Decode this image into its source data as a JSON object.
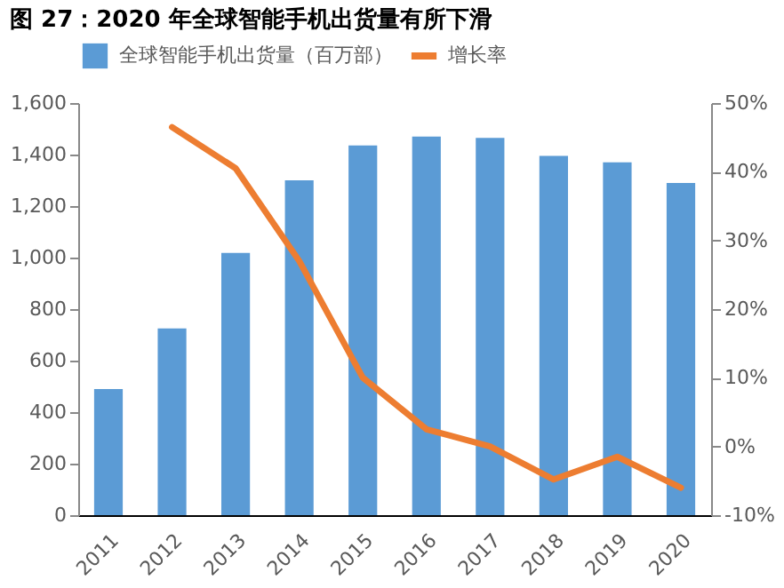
{
  "chart_data": {
    "type": "bar",
    "title": "图 27：2020 年全球智能手机出货量有所下滑",
    "categories": [
      "2011",
      "2012",
      "2013",
      "2014",
      "2015",
      "2016",
      "2017",
      "2018",
      "2019",
      "2020"
    ],
    "series": [
      {
        "name": "全球智能手机出货量（百万部）",
        "color": "#5b9bd5",
        "values": [
          490,
          725,
          1018,
          1300,
          1435,
          1470,
          1465,
          1395,
          1370,
          1290
        ]
      },
      {
        "name": "增长率",
        "type": "line",
        "axis": "y2",
        "color": "#ed7d31",
        "values": [
          null,
          46.5,
          40.5,
          27,
          10,
          2.5,
          0,
          -4.8,
          -1.5,
          -6
        ]
      }
    ],
    "ylim": [
      0,
      1600
    ],
    "yticks": [
      0,
      200,
      400,
      600,
      800,
      {
        "value": 1000,
        "label": "1,000"
      },
      {
        "value": 1200,
        "label": "1,200"
      },
      {
        "value": 1400,
        "label": "1,400"
      },
      {
        "value": 1600,
        "label": "1,600"
      }
    ],
    "y2lim": [
      -10,
      50
    ],
    "y2ticks": [
      {
        "value": -10,
        "label": "-10%"
      },
      {
        "value": 0,
        "label": "0%"
      },
      {
        "value": 10,
        "label": "10%"
      },
      {
        "value": 20,
        "label": "20%"
      },
      {
        "value": 30,
        "label": "30%"
      },
      {
        "value": 40,
        "label": "40%"
      },
      {
        "value": 50,
        "label": "50%"
      }
    ],
    "grid": false,
    "legend": "top"
  }
}
